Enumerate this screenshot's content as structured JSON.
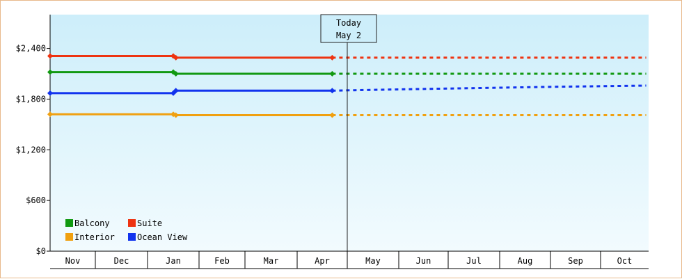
{
  "chart_data": {
    "type": "line",
    "categories": [
      "Nov",
      "Dec",
      "Jan",
      "Feb",
      "Mar",
      "Apr",
      "May",
      "Jun",
      "Jul",
      "Aug",
      "Sep",
      "Oct"
    ],
    "y_ticks": [
      "$0",
      "$600",
      "$1,200",
      "$1,800",
      "$2,400"
    ],
    "ylim": [
      0,
      2400
    ],
    "today": {
      "line1": "Today",
      "line2": "May 2"
    },
    "series": [
      {
        "name": "Suite",
        "color": "#ee3311",
        "points": [
          {
            "m": 0,
            "v": 2310
          },
          {
            "m": 2.5,
            "v": 2310
          },
          {
            "m": 2.55,
            "v": 2290
          },
          {
            "m": 5.7,
            "v": 2290
          }
        ],
        "forecast": [
          {
            "m": 5.7,
            "v": 2290
          },
          {
            "m": 11.95,
            "v": 2290
          }
        ]
      },
      {
        "name": "Balcony",
        "color": "#119911",
        "points": [
          {
            "m": 0,
            "v": 2120
          },
          {
            "m": 2.5,
            "v": 2120
          },
          {
            "m": 2.55,
            "v": 2100
          },
          {
            "m": 5.7,
            "v": 2100
          }
        ],
        "forecast": [
          {
            "m": 5.7,
            "v": 2100
          },
          {
            "m": 11.95,
            "v": 2100
          }
        ]
      },
      {
        "name": "Ocean View",
        "color": "#1133ee",
        "points": [
          {
            "m": 0,
            "v": 1870
          },
          {
            "m": 2.5,
            "v": 1870
          },
          {
            "m": 2.55,
            "v": 1900
          },
          {
            "m": 5.7,
            "v": 1900
          }
        ],
        "forecast": [
          {
            "m": 5.7,
            "v": 1900
          },
          {
            "m": 7,
            "v": 1915
          },
          {
            "m": 8,
            "v": 1925
          },
          {
            "m": 9,
            "v": 1935
          },
          {
            "m": 10,
            "v": 1945
          },
          {
            "m": 11.95,
            "v": 1960
          }
        ]
      },
      {
        "name": "Interior",
        "color": "#f0a010",
        "points": [
          {
            "m": 0,
            "v": 1620
          },
          {
            "m": 2.5,
            "v": 1620
          },
          {
            "m": 2.55,
            "v": 1610
          },
          {
            "m": 5.7,
            "v": 1610
          }
        ],
        "forecast": [
          {
            "m": 5.7,
            "v": 1610
          },
          {
            "m": 11.95,
            "v": 1610
          }
        ]
      }
    ],
    "legend": [
      {
        "name": "Balcony",
        "color": "#119911"
      },
      {
        "name": "Suite",
        "color": "#ee3311"
      },
      {
        "name": "Interior",
        "color": "#f0a010"
      },
      {
        "name": "Ocean View",
        "color": "#1133ee"
      }
    ],
    "legend_position": "bottom-left",
    "grid": false
  }
}
